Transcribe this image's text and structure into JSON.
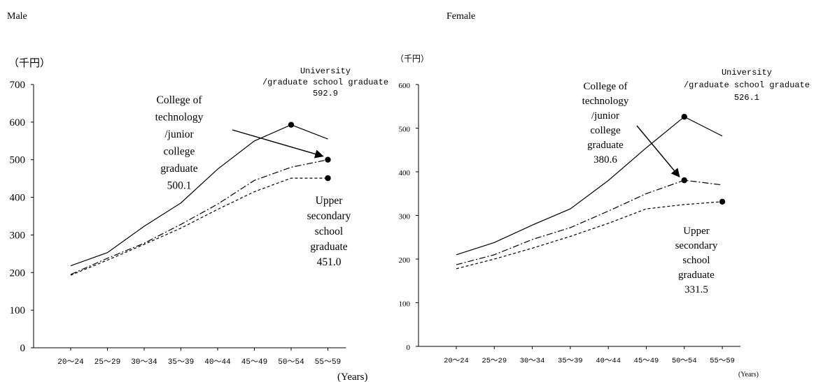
{
  "chart_data": [
    {
      "type": "line",
      "title": "Male",
      "unit_label": "（千円）",
      "xlabel": "(Years)",
      "ylim": [
        0,
        700
      ],
      "yticks": [
        0,
        100,
        200,
        300,
        400,
        500,
        600,
        700
      ],
      "categories": [
        "20～24",
        "25～29",
        "30～34",
        "35～39",
        "40～44",
        "45～49",
        "50～54",
        "55～59"
      ],
      "series": [
        {
          "key": "university",
          "style": "solid",
          "values": [
            218,
            253,
            323,
            385,
            475,
            550,
            592.9,
            555
          ],
          "marker_index": 6,
          "label_lines": [
            "University",
            "/graduate school graduate",
            "592.9"
          ]
        },
        {
          "key": "college",
          "style": "dashdot",
          "values": [
            195,
            238,
            278,
            328,
            382,
            445,
            480,
            500.1
          ],
          "marker_index": 7,
          "label_lines": [
            "College of",
            "technology",
            "/junior",
            "college",
            "graduate",
            "500.1"
          ]
        },
        {
          "key": "upper",
          "style": "dashed",
          "values": [
            193,
            233,
            275,
            318,
            368,
            415,
            451,
            451.0
          ],
          "marker_index": 7,
          "label_lines": [
            "Upper",
            "secondary",
            "school",
            "graduate",
            "451.0"
          ]
        }
      ]
    },
    {
      "type": "line",
      "title": "Female",
      "unit_label": "（千円）",
      "xlabel": "(Years)",
      "ylim": [
        0,
        600
      ],
      "yticks": [
        0,
        100,
        200,
        300,
        400,
        500,
        600
      ],
      "categories": [
        "20～24",
        "25～29",
        "30～34",
        "35～39",
        "40～44",
        "45～49",
        "50～54",
        "55～59"
      ],
      "series": [
        {
          "key": "university",
          "style": "solid",
          "values": [
            210,
            238,
            278,
            315,
            380,
            455,
            526.1,
            482
          ],
          "marker_index": 6,
          "label_lines": [
            "University",
            "/graduate school graduate",
            "526.1"
          ]
        },
        {
          "key": "college",
          "style": "dashdot",
          "values": [
            187,
            210,
            245,
            272,
            310,
            350,
            380.6,
            370
          ],
          "marker_index": 6,
          "label_lines": [
            "College of",
            "technology",
            "/junior",
            "college",
            "graduate",
            "380.6"
          ]
        },
        {
          "key": "upper",
          "style": "dashed",
          "values": [
            178,
            200,
            225,
            252,
            282,
            315,
            325,
            331.5
          ],
          "marker_index": 7,
          "label_lines": [
            "Upper",
            "secondary",
            "school",
            "graduate",
            "331.5"
          ]
        }
      ]
    }
  ]
}
